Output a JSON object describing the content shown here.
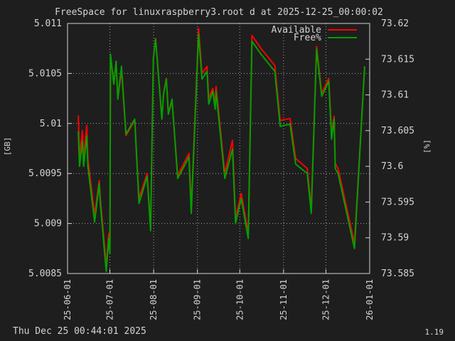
{
  "footer": {
    "timestamp": "Thu Dec 25 00:44:01 2025",
    "version": "1.19"
  },
  "chart_data": {
    "type": "line",
    "title": "FreeSpace for linuxraspberry3.root d at 2025-12-25_00:00:02",
    "ylabel": "[GB]",
    "y2label": "[%]",
    "ylim": [
      5.0085,
      5.011
    ],
    "y2lim": [
      73.585,
      73.62
    ],
    "yticks": [
      "5.0085",
      "5.009",
      "5.0095",
      "5.01",
      "5.0105",
      "5.011"
    ],
    "y2ticks": [
      "73.585",
      "73.59",
      "73.595",
      "73.6",
      "73.605",
      "73.61",
      "73.615",
      "73.62"
    ],
    "xticks": [
      "25-06-01",
      "25-07-01",
      "25-08-01",
      "25-09-01",
      "25-10-01",
      "25-11-01",
      "25-12-01",
      "26-01-01"
    ],
    "xrange_days": [
      0,
      214
    ],
    "grid": true,
    "legend_position": "top-right",
    "colors": {
      "available": "#ff0000",
      "free": "#00a000",
      "background": "#1e1e1e",
      "text": "#d4d4d4",
      "grid": "#d4d4d4"
    },
    "series": [
      {
        "name": "Available",
        "axis": "left",
        "color": "#ff0000",
        "x": [
          7.6,
          8.5,
          10.5,
          11.4,
          13.6,
          14.4,
          19.2,
          22.4,
          23.2,
          27.4,
          29.2,
          30.0,
          30.4,
          32.8,
          34.4,
          35.6,
          38.2,
          41.4,
          47.6,
          50.6,
          56.4,
          58.8,
          60.8,
          62.4,
          66.8,
          68.0,
          70.0,
          71.4,
          74.0,
          78.0,
          86.0,
          87.6,
          92.8,
          95.2,
          98.8,
          100.0,
          102.8,
          104.6,
          105.2,
          111.4,
          116.8,
          119.0,
          123.0,
          128.0,
          130.6,
          137.0,
          146.8,
          150.6,
          157.6,
          161.6,
          169.8,
          172.6,
          176.4,
          180.0,
          185.0,
          187.0,
          188.8,
          189.6,
          191.6,
          203.2,
          210.4
        ],
        "values": [
          5.01008,
          5.00965,
          5.00993,
          5.00965,
          5.00998,
          5.00965,
          5.00908,
          5.00943,
          5.00925,
          5.00858,
          5.0089,
          5.00875,
          5.01068,
          5.0104,
          5.01062,
          5.01025,
          5.01053,
          5.00988,
          5.01003,
          5.00925,
          5.0095,
          5.00895,
          5.01065,
          5.01085,
          5.01005,
          5.0103,
          5.01045,
          5.0101,
          5.01022,
          5.00948,
          5.0097,
          5.00915,
          5.01095,
          5.0105,
          5.01057,
          5.01025,
          5.01035,
          5.0102,
          5.01037,
          5.0095,
          5.00983,
          5.00905,
          5.0093,
          5.0089,
          5.01088,
          5.01075,
          5.01058,
          5.01003,
          5.01005,
          5.00965,
          5.00955,
          5.00915,
          5.01077,
          5.0103,
          5.01045,
          5.0099,
          5.01007,
          5.0096,
          5.00955,
          5.0088,
          5.01057
        ]
      },
      {
        "name": "Free%",
        "axis": "right",
        "color": "#00a000",
        "x": [
          7.6,
          8.5,
          10.5,
          11.4,
          13.6,
          14.4,
          19.2,
          22.4,
          23.2,
          27.4,
          29.2,
          30.0,
          30.4,
          32.8,
          34.4,
          35.6,
          38.2,
          41.4,
          47.6,
          50.6,
          56.4,
          58.8,
          60.8,
          62.4,
          66.8,
          68.0,
          70.0,
          71.4,
          74.0,
          78.0,
          86.0,
          87.6,
          92.8,
          95.2,
          98.8,
          100.0,
          102.8,
          104.6,
          105.2,
          111.4,
          116.8,
          119.0,
          123.0,
          128.0,
          130.6,
          137.0,
          146.8,
          150.6,
          157.6,
          161.6,
          169.8,
          172.6,
          176.4,
          180.0,
          185.0,
          187.0,
          188.8,
          189.6,
          191.6,
          203.2,
          210.4
        ],
        "values": [
          73.6049,
          73.6,
          73.6035,
          73.6,
          73.6042,
          73.6,
          73.5922,
          73.5976,
          73.5948,
          73.5853,
          73.5899,
          73.5878,
          73.6157,
          73.6115,
          73.6147,
          73.6094,
          73.614,
          73.6045,
          73.6066,
          73.5948,
          73.5986,
          73.591,
          73.615,
          73.6178,
          73.6066,
          73.6101,
          73.6122,
          73.6073,
          73.6094,
          73.5983,
          73.6013,
          73.5934,
          73.6185,
          73.6122,
          73.6133,
          73.6087,
          73.6105,
          73.608,
          73.6105,
          73.5983,
          73.6024,
          73.592,
          73.5955,
          73.5899,
          73.6175,
          73.6157,
          73.6133,
          73.6056,
          73.6059,
          73.6003,
          73.599,
          73.5934,
          73.6164,
          73.6098,
          73.6119,
          73.6038,
          73.6066,
          73.5997,
          73.599,
          73.5885,
          73.614
        ]
      }
    ]
  }
}
